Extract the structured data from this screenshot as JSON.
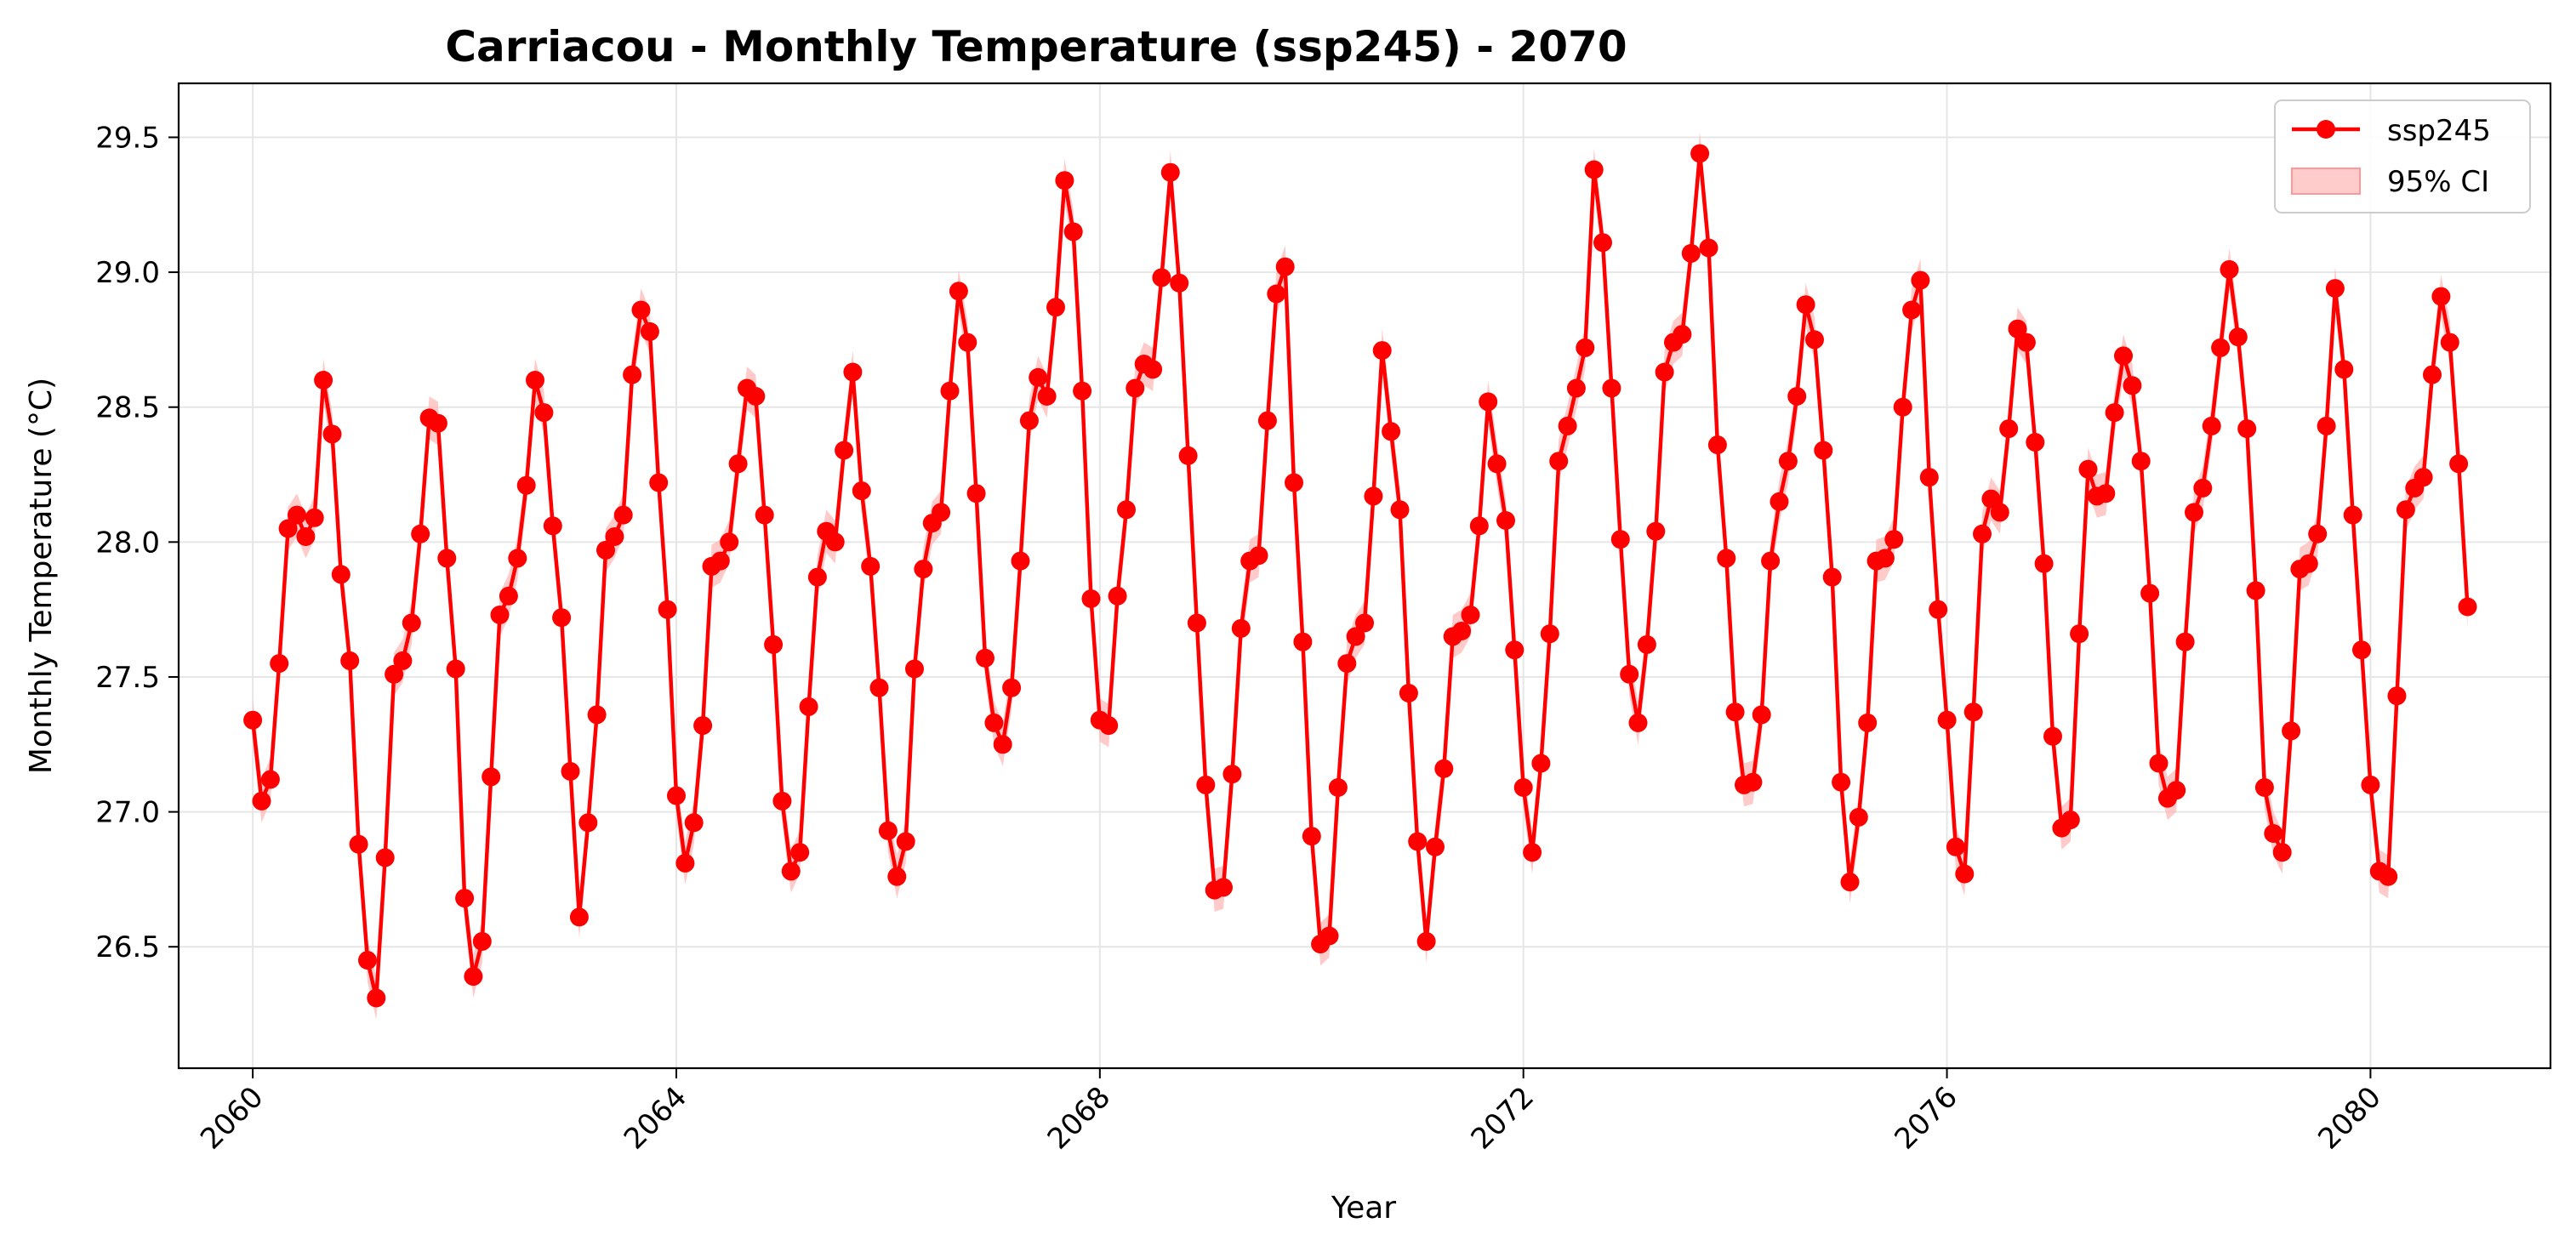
{
  "chart_data": {
    "type": "line",
    "title": "Carriacou - Monthly Temperature (ssp245) - 2070",
    "xlabel": "Year",
    "ylabel": "Monthly Temperature (°C)",
    "xlim": [
      2059.3,
      2081.7
    ],
    "ylim": [
      26.05,
      29.7
    ],
    "x_ticks": [
      2060,
      2064,
      2068,
      2072,
      2076,
      2080
    ],
    "x_tick_labels": [
      "2060",
      "2064",
      "2068",
      "2072",
      "2076",
      "2080"
    ],
    "y_ticks": [
      26.5,
      27.0,
      27.5,
      28.0,
      28.5,
      29.0,
      29.5
    ],
    "y_tick_labels": [
      "26.5",
      "27.0",
      "27.5",
      "28.0",
      "28.5",
      "29.0",
      "29.5"
    ],
    "grid": true,
    "legend_position": "top-right",
    "x_start": {
      "year": 2060,
      "month": 1
    },
    "ci_halfwidth": 0.08,
    "series": [
      {
        "name": "ssp245",
        "color": "#ff0000",
        "ci_label": "95% CI",
        "ci_color": "#ffb3b3",
        "values": [
          27.34,
          27.04,
          27.12,
          27.55,
          28.05,
          28.1,
          28.02,
          28.09,
          28.6,
          28.4,
          27.88,
          27.56,
          26.88,
          26.45,
          26.31,
          26.83,
          27.51,
          27.56,
          27.7,
          28.03,
          28.46,
          28.44,
          27.94,
          27.53,
          26.68,
          26.39,
          26.52,
          27.13,
          27.73,
          27.8,
          27.94,
          28.21,
          28.6,
          28.48,
          28.06,
          27.72,
          27.15,
          26.61,
          26.96,
          27.36,
          27.97,
          28.02,
          28.1,
          28.62,
          28.86,
          28.78,
          28.22,
          27.75,
          27.06,
          26.81,
          26.96,
          27.32,
          27.91,
          27.93,
          28.0,
          28.29,
          28.57,
          28.54,
          28.1,
          27.62,
          27.04,
          26.78,
          26.85,
          27.39,
          27.87,
          28.04,
          28.0,
          28.34,
          28.63,
          28.19,
          27.91,
          27.46,
          26.93,
          26.76,
          26.89,
          27.53,
          27.9,
          28.07,
          28.11,
          28.56,
          28.93,
          28.74,
          28.18,
          27.57,
          27.33,
          27.25,
          27.46,
          27.93,
          28.45,
          28.61,
          28.54,
          28.87,
          29.34,
          29.15,
          28.56,
          27.79,
          27.34,
          27.32,
          27.8,
          28.12,
          28.57,
          28.66,
          28.64,
          28.98,
          29.37,
          28.96,
          28.32,
          27.7,
          27.1,
          26.71,
          26.72,
          27.14,
          27.68,
          27.93,
          27.95,
          28.45,
          28.92,
          29.02,
          28.22,
          27.63,
          26.91,
          26.51,
          26.54,
          27.09,
          27.55,
          27.65,
          27.7,
          28.17,
          28.71,
          28.41,
          28.12,
          27.44,
          26.89,
          26.52,
          26.87,
          27.16,
          27.65,
          27.67,
          27.73,
          28.06,
          28.52,
          28.29,
          28.08,
          27.6,
          27.09,
          26.85,
          27.18,
          27.66,
          28.3,
          28.43,
          28.57,
          28.72,
          29.38,
          29.11,
          28.57,
          28.01,
          27.51,
          27.33,
          27.62,
          28.04,
          28.63,
          28.74,
          28.77,
          29.07,
          29.44,
          29.09,
          28.36,
          27.94,
          27.37,
          27.1,
          27.11,
          27.36,
          27.93,
          28.15,
          28.3,
          28.54,
          28.88,
          28.75,
          28.34,
          27.87,
          27.11,
          26.74,
          26.98,
          27.33,
          27.93,
          27.94,
          28.01,
          28.5,
          28.86,
          28.97,
          28.24,
          27.75,
          27.34,
          26.87,
          26.77,
          27.37,
          28.03,
          28.16,
          28.11,
          28.42,
          28.79,
          28.74,
          28.37,
          27.92,
          27.28,
          26.94,
          26.97,
          27.66,
          28.27,
          28.17,
          28.18,
          28.48,
          28.69,
          28.58,
          28.3,
          27.81,
          27.18,
          27.05,
          27.08,
          27.63,
          28.11,
          28.2,
          28.43,
          28.72,
          29.01,
          28.76,
          28.42,
          27.82,
          27.09,
          26.92,
          26.85,
          27.3,
          27.9,
          27.92,
          28.03,
          28.43,
          28.94,
          28.64,
          28.1,
          27.6,
          27.1,
          26.78,
          26.76,
          27.43,
          28.12,
          28.2,
          28.24,
          28.62,
          28.91,
          28.74,
          28.29,
          27.76
        ]
      }
    ]
  }
}
